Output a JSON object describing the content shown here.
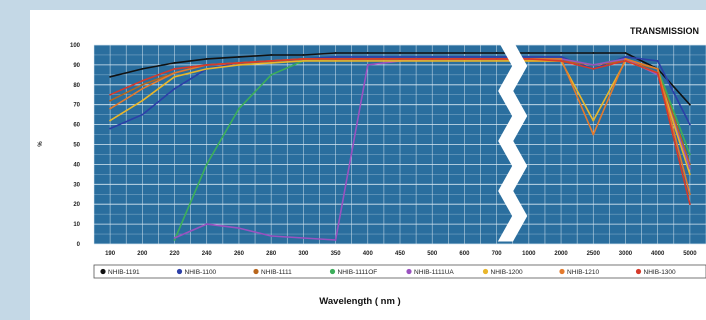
{
  "chart_data": {
    "type": "line",
    "title": "TRANSMISSION",
    "xlabel": "Wavelength ( nm )",
    "ylabel": "%",
    "ylim": [
      0,
      100
    ],
    "y_ticks": [
      "0",
      "10",
      "20",
      "30",
      "40",
      "50",
      "60",
      "70",
      "80",
      "90",
      "100"
    ],
    "x_ticks": [
      "190",
      "200",
      "220",
      "240",
      "260",
      "280",
      "300",
      "350",
      "400",
      "450",
      "500",
      "600",
      "700",
      "1000",
      "2000",
      "2500",
      "3000",
      "4000",
      "5000"
    ],
    "grid": true,
    "break_marker": "between 700 and 1000",
    "legend_position": "bottom",
    "colors": {
      "plot_bg": "#2a6e9e",
      "grid": "#d8e8f2",
      "page_bg": "#c4d8e6"
    },
    "series": [
      {
        "name": "NHIB-1191",
        "color": "#111111",
        "values": [
          84,
          88,
          91,
          93,
          94,
          95,
          95,
          96,
          96,
          96,
          96,
          96,
          96,
          96,
          96,
          96,
          96,
          88,
          70
        ]
      },
      {
        "name": "NHIB-1100",
        "color": "#2c3fa8",
        "values": [
          58,
          65,
          78,
          88,
          91,
          92,
          93,
          94,
          94,
          94,
          94,
          94,
          94,
          94,
          94,
          88,
          94,
          92,
          60
        ]
      },
      {
        "name": "NHIB-1111",
        "color": "#b8651b",
        "values": [
          72,
          80,
          86,
          90,
          91,
          92,
          93,
          93,
          93,
          93,
          93,
          93,
          93,
          92,
          92,
          90,
          92,
          88,
          40
        ]
      },
      {
        "name": "NHIB-1111OF",
        "color": "#3cae5a",
        "values": [
          null,
          null,
          2,
          40,
          68,
          85,
          92,
          93,
          93,
          93,
          93,
          93,
          93,
          93,
          93,
          90,
          93,
          88,
          45
        ]
      },
      {
        "name": "NHIB-1111UA",
        "color": "#9a52c0",
        "values": [
          null,
          null,
          3,
          10,
          8,
          4,
          3,
          2,
          90,
          92,
          93,
          93,
          93,
          93,
          93,
          90,
          93,
          85,
          38
        ]
      },
      {
        "name": "NHIB-1200",
        "color": "#e9b62a",
        "values": [
          62,
          72,
          84,
          88,
          90,
          91,
          92,
          92,
          92,
          92,
          92,
          92,
          92,
          92,
          92,
          62,
          92,
          86,
          35
        ]
      },
      {
        "name": "NHIB-1210",
        "color": "#e47a2c",
        "values": [
          68,
          78,
          86,
          90,
          91,
          92,
          93,
          93,
          93,
          93,
          93,
          93,
          93,
          93,
          93,
          55,
          93,
          88,
          25
        ]
      },
      {
        "name": "NHIB-1300",
        "color": "#d63a2a",
        "values": [
          75,
          82,
          88,
          90,
          91,
          92,
          93,
          93,
          93,
          93,
          93,
          93,
          93,
          93,
          92,
          88,
          92,
          86,
          20
        ]
      }
    ]
  }
}
